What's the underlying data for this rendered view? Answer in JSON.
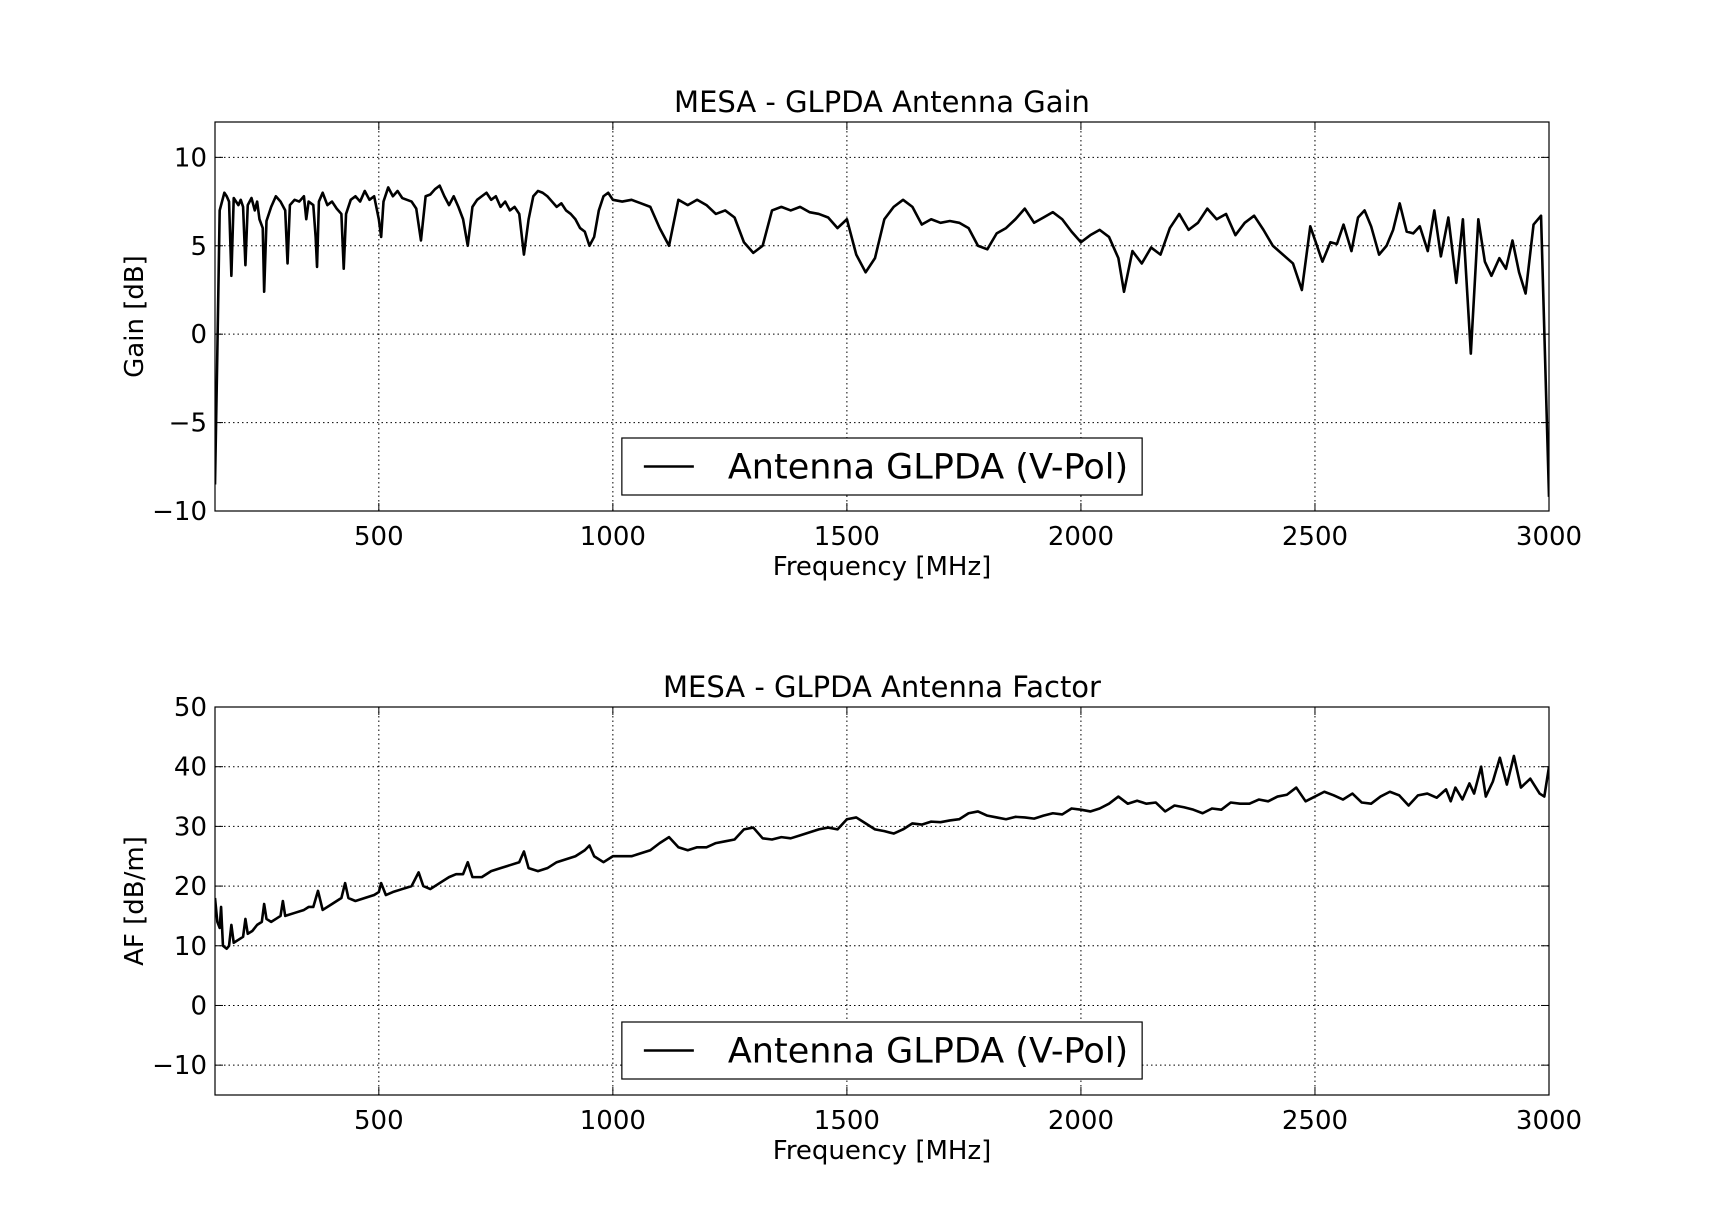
{
  "chart_data": [
    {
      "type": "line",
      "title": "MESA - GLPDA Antenna Gain",
      "x_label": "Frequency [MHz]",
      "y_label": "Gain [dB]",
      "x": [
        150,
        155,
        160,
        165,
        170,
        175,
        180,
        185,
        190,
        200,
        205,
        210,
        215,
        220,
        228,
        235,
        240,
        245,
        252,
        255,
        260,
        270,
        280,
        290,
        300,
        305,
        310,
        320,
        330,
        340,
        345,
        350,
        360,
        365,
        368,
        372,
        380,
        390,
        400,
        410,
        420,
        425,
        430,
        440,
        450,
        460,
        470,
        480,
        490,
        500,
        505,
        510,
        520,
        530,
        540,
        550,
        560,
        570,
        580,
        590,
        600,
        610,
        620,
        630,
        640,
        650,
        660,
        670,
        680,
        690,
        700,
        710,
        720,
        730,
        740,
        750,
        760,
        770,
        780,
        790,
        800,
        810,
        820,
        830,
        840,
        850,
        860,
        870,
        880,
        890,
        900,
        910,
        920,
        930,
        940,
        950,
        960,
        970,
        980,
        990,
        1000,
        1020,
        1040,
        1060,
        1080,
        1100,
        1120,
        1140,
        1160,
        1180,
        1200,
        1220,
        1240,
        1260,
        1280,
        1300,
        1320,
        1340,
        1360,
        1380,
        1400,
        1420,
        1440,
        1460,
        1480,
        1500,
        1520,
        1540,
        1560,
        1580,
        1600,
        1620,
        1640,
        1660,
        1680,
        1700,
        1720,
        1740,
        1760,
        1780,
        1800,
        1820,
        1840,
        1860,
        1880,
        1900,
        1920,
        1940,
        1960,
        1980,
        2000,
        2020,
        2040,
        2060,
        2080,
        2092,
        2110,
        2130,
        2150,
        2170,
        2190,
        2210,
        2230,
        2250,
        2270,
        2290,
        2310,
        2330,
        2350,
        2370,
        2390,
        2410,
        2453,
        2472,
        2490,
        2516,
        2533,
        2547,
        2561,
        2578,
        2592,
        2606,
        2620,
        2637,
        2653,
        2667,
        2681,
        2696,
        2710,
        2724,
        2741,
        2755,
        2769,
        2785,
        2802,
        2816,
        2833,
        2849,
        2863,
        2877,
        2894,
        2908,
        2922,
        2936,
        2950,
        2967,
        2983,
        3000
      ],
      "series": [
        {
          "name": "Antenna GLPDA (V-Pol)",
          "color": "#000000",
          "values": [
            -8.5,
            -1,
            7,
            7.5,
            8,
            7.8,
            7.5,
            3.3,
            7.7,
            7.3,
            7.6,
            7.2,
            3.9,
            7.3,
            7.7,
            7,
            7.5,
            6.5,
            6,
            2.4,
            6.4,
            7.2,
            7.8,
            7.5,
            7,
            4,
            7.3,
            7.6,
            7.5,
            7.8,
            6.5,
            7.5,
            7.3,
            5.5,
            3.8,
            7.5,
            8,
            7.3,
            7.5,
            7.1,
            6.8,
            3.7,
            6.8,
            7.6,
            7.8,
            7.5,
            8.1,
            7.6,
            7.8,
            6.5,
            5.5,
            7.5,
            8.3,
            7.8,
            8.1,
            7.7,
            7.6,
            7.5,
            7.1,
            5.3,
            7.8,
            7.9,
            8.2,
            8.4,
            7.8,
            7.3,
            7.8,
            7.2,
            6.5,
            5,
            7.2,
            7.6,
            7.8,
            8,
            7.6,
            7.8,
            7.2,
            7.5,
            7,
            7.2,
            6.8,
            4.5,
            6.5,
            7.8,
            8.1,
            8,
            7.8,
            7.5,
            7.2,
            7.4,
            7,
            6.8,
            6.5,
            6,
            5.8,
            5,
            5.5,
            7,
            7.8,
            8,
            7.6,
            7.5,
            7.6,
            7.4,
            7.2,
            6,
            5,
            7.6,
            7.3,
            7.6,
            7.3,
            6.8,
            7,
            6.6,
            5.2,
            4.6,
            5,
            7,
            7.2,
            7,
            7.2,
            6.9,
            6.8,
            6.6,
            6,
            6.5,
            4.5,
            3.5,
            4.3,
            6.5,
            7.2,
            7.6,
            7.2,
            6.2,
            6.5,
            6.3,
            6.4,
            6.3,
            6,
            5,
            4.8,
            5.7,
            6,
            6.5,
            7.1,
            6.3,
            6.6,
            6.9,
            6.5,
            5.8,
            5.2,
            5.6,
            5.9,
            5.5,
            4.3,
            2.4,
            4.7,
            4,
            4.9,
            4.5,
            6,
            6.8,
            5.9,
            6.3,
            7.1,
            6.5,
            6.8,
            5.6,
            6.3,
            6.7,
            5.9,
            5,
            4,
            2.5,
            6.1,
            4.1,
            5.2,
            5.1,
            6.2,
            4.7,
            6.6,
            7,
            6.1,
            4.5,
            5,
            5.9,
            7.4,
            5.8,
            5.7,
            6.1,
            4.7,
            7,
            4.4,
            6.6,
            2.9,
            6.5,
            -1.1,
            6.5,
            4.1,
            3.3,
            4.3,
            3.7,
            5.3,
            3.5,
            2.3,
            6.2,
            6.7,
            -9.2
          ]
        }
      ],
      "xlim": [
        150,
        3000
      ],
      "ylim": [
        -10,
        12
      ],
      "xticks": [
        500,
        1000,
        1500,
        2000,
        2500,
        3000
      ],
      "yticks": [
        {
          "value": -10,
          "label": "−10"
        },
        {
          "value": -5,
          "label": "−5"
        },
        0,
        5,
        10
      ],
      "grid": true,
      "legend": "lower center"
    },
    {
      "type": "line",
      "title": "MESA - GLPDA Antenna Factor",
      "x_label": "Frequency [MHz]",
      "y_label": "AF [dB/m]",
      "x": [
        150,
        155,
        160,
        163,
        167,
        175,
        180,
        185,
        190,
        200,
        210,
        215,
        220,
        230,
        240,
        250,
        255,
        260,
        270,
        280,
        290,
        295,
        300,
        320,
        340,
        350,
        360,
        370,
        380,
        400,
        410,
        420,
        428,
        435,
        450,
        470,
        490,
        500,
        505,
        515,
        530,
        550,
        570,
        585,
        595,
        610,
        630,
        650,
        665,
        680,
        690,
        700,
        720,
        740,
        760,
        780,
        800,
        810,
        820,
        840,
        860,
        880,
        900,
        920,
        940,
        950,
        960,
        980,
        1000,
        1040,
        1080,
        1100,
        1120,
        1140,
        1160,
        1180,
        1200,
        1220,
        1240,
        1260,
        1280,
        1300,
        1320,
        1340,
        1360,
        1380,
        1400,
        1420,
        1440,
        1460,
        1480,
        1500,
        1520,
        1540,
        1560,
        1580,
        1600,
        1620,
        1640,
        1660,
        1680,
        1700,
        1720,
        1740,
        1760,
        1780,
        1800,
        1820,
        1840,
        1860,
        1880,
        1900,
        1920,
        1940,
        1960,
        1980,
        2000,
        2020,
        2040,
        2060,
        2080,
        2100,
        2120,
        2140,
        2160,
        2180,
        2200,
        2220,
        2240,
        2260,
        2280,
        2300,
        2320,
        2340,
        2360,
        2380,
        2400,
        2420,
        2440,
        2460,
        2480,
        2500,
        2520,
        2540,
        2560,
        2580,
        2600,
        2620,
        2640,
        2660,
        2680,
        2700,
        2720,
        2740,
        2760,
        2780,
        2790,
        2800,
        2815,
        2830,
        2840,
        2855,
        2865,
        2880,
        2895,
        2910,
        2925,
        2940,
        2960,
        2980,
        2990,
        3000
      ],
      "series": [
        {
          "name": "Antenna GLPDA (V-Pol)",
          "color": "#000000",
          "values": [
            18,
            14,
            13,
            16.5,
            10,
            9.5,
            10,
            13.5,
            10.5,
            11,
            11.5,
            14.5,
            12,
            12.5,
            13.5,
            14,
            17,
            14.5,
            14,
            14.5,
            15,
            17.5,
            15,
            15.5,
            16,
            16.5,
            16.5,
            19.2,
            16,
            17,
            17.5,
            18,
            20.5,
            18,
            17.5,
            18,
            18.5,
            19,
            20.5,
            18.5,
            19,
            19.5,
            20,
            22.3,
            20,
            19.5,
            20.5,
            21.5,
            22,
            22,
            24,
            21.5,
            21.5,
            22.5,
            23,
            23.5,
            24,
            25.8,
            23,
            22.5,
            23,
            24,
            24.5,
            25,
            26,
            26.8,
            25,
            24,
            25,
            25,
            26,
            27.2,
            28.2,
            26.5,
            26,
            26.5,
            26.5,
            27.2,
            27.5,
            27.8,
            29.5,
            29.8,
            28,
            27.8,
            28.2,
            28,
            28.5,
            29,
            29.5,
            29.8,
            29.5,
            31.2,
            31.5,
            30.5,
            29.5,
            29.2,
            28.8,
            29.5,
            30.5,
            30.3,
            30.8,
            30.7,
            31,
            31.2,
            32.2,
            32.5,
            31.8,
            31.5,
            31.2,
            31.6,
            31.5,
            31.3,
            31.8,
            32.2,
            32,
            33,
            32.8,
            32.5,
            33,
            33.8,
            35,
            33.8,
            34.3,
            33.8,
            34,
            32.5,
            33.5,
            33.2,
            32.8,
            32.2,
            33,
            32.8,
            34,
            33.8,
            33.8,
            34.5,
            34.2,
            35,
            35.3,
            36.5,
            34.2,
            35,
            35.8,
            35.2,
            34.5,
            35.5,
            34,
            33.8,
            35,
            35.8,
            35.2,
            33.5,
            35.2,
            35.5,
            34.8,
            36.2,
            34.2,
            36.5,
            34.5,
            37.2,
            35.5,
            40,
            35,
            37.5,
            41.5,
            37,
            41.8,
            36.5,
            38,
            35.5,
            35,
            40
          ]
        }
      ],
      "xlim": [
        150,
        3000
      ],
      "ylim": [
        -15,
        50
      ],
      "xticks": [
        500,
        1000,
        1500,
        2000,
        2500,
        3000
      ],
      "yticks": [
        {
          "value": -10,
          "label": "−10"
        },
        0,
        10,
        20,
        30,
        40,
        50
      ],
      "grid": true,
      "legend": "lower center"
    }
  ]
}
